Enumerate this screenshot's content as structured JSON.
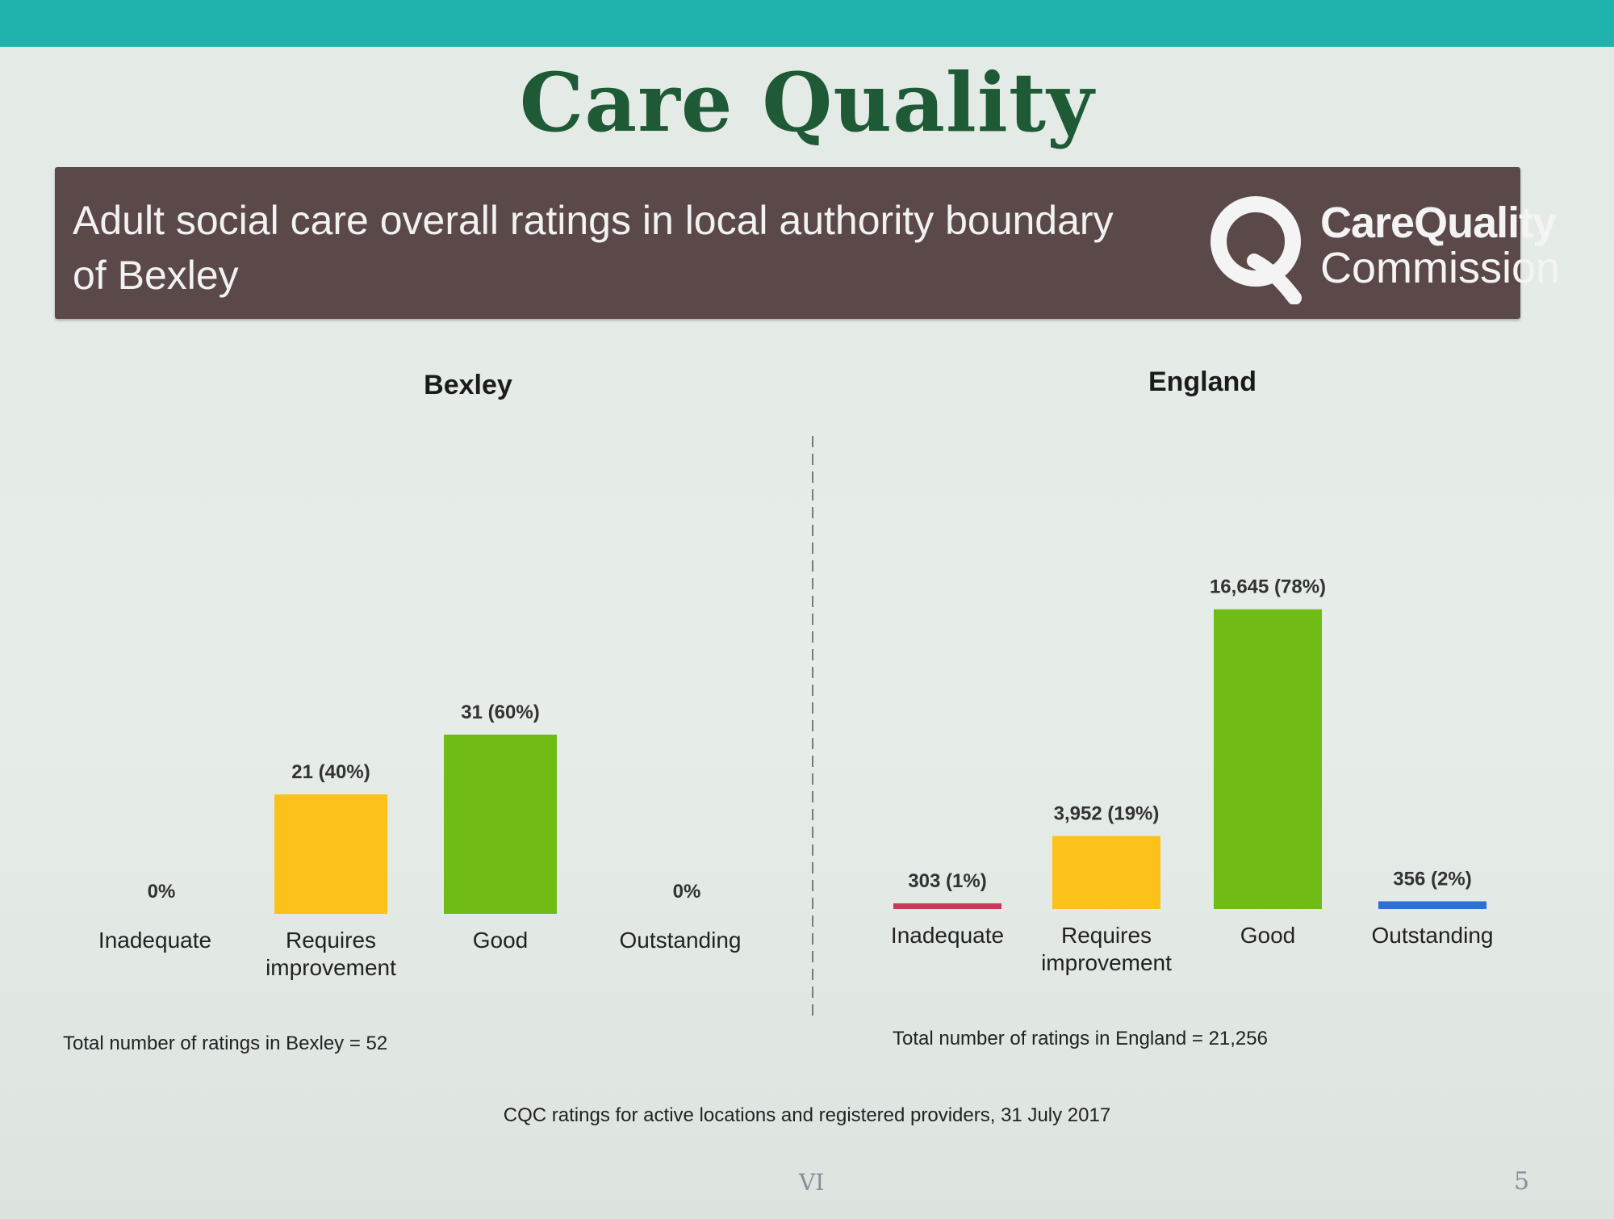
{
  "slide": {
    "title": "Care Quality",
    "banner_text": "Adult social care overall ratings in local authority boundary of Bexley",
    "logo_line1": "CareQuality",
    "logo_line2": "Commission",
    "source": "CQC ratings for active locations and registered providers, 31 July 2017",
    "footer_mark": "VI",
    "page_number": "5"
  },
  "colors": {
    "inadequate": "#c8385a",
    "requires_improvement": "#fcc21a",
    "good": "#71bb16",
    "outstanding": "#2f6fd0",
    "header_bar": "#20b2ac",
    "title": "#1f5a36",
    "banner": "#5b4949"
  },
  "chart_data": [
    {
      "type": "bar",
      "title": "Bexley",
      "categories": [
        "Inadequate",
        "Requires improvement",
        "Good",
        "Outstanding"
      ],
      "values": [
        0,
        21,
        31,
        0
      ],
      "percentages": [
        0,
        40,
        60,
        0
      ],
      "data_labels": [
        "0%",
        "21 (40%)",
        "31 (60%)",
        "0%"
      ],
      "total_label": "Total number of ratings in Bexley = 52"
    },
    {
      "type": "bar",
      "title": "England",
      "categories": [
        "Inadequate",
        "Requires improvement",
        "Good",
        "Outstanding"
      ],
      "values": [
        303,
        3952,
        16645,
        356
      ],
      "percentages": [
        1,
        19,
        78,
        2
      ],
      "data_labels": [
        "303 (1%)",
        "3,952 (19%)",
        "16,645 (78%)",
        "356 (2%)"
      ],
      "total_label": "Total number of ratings in England = 21,256"
    }
  ]
}
